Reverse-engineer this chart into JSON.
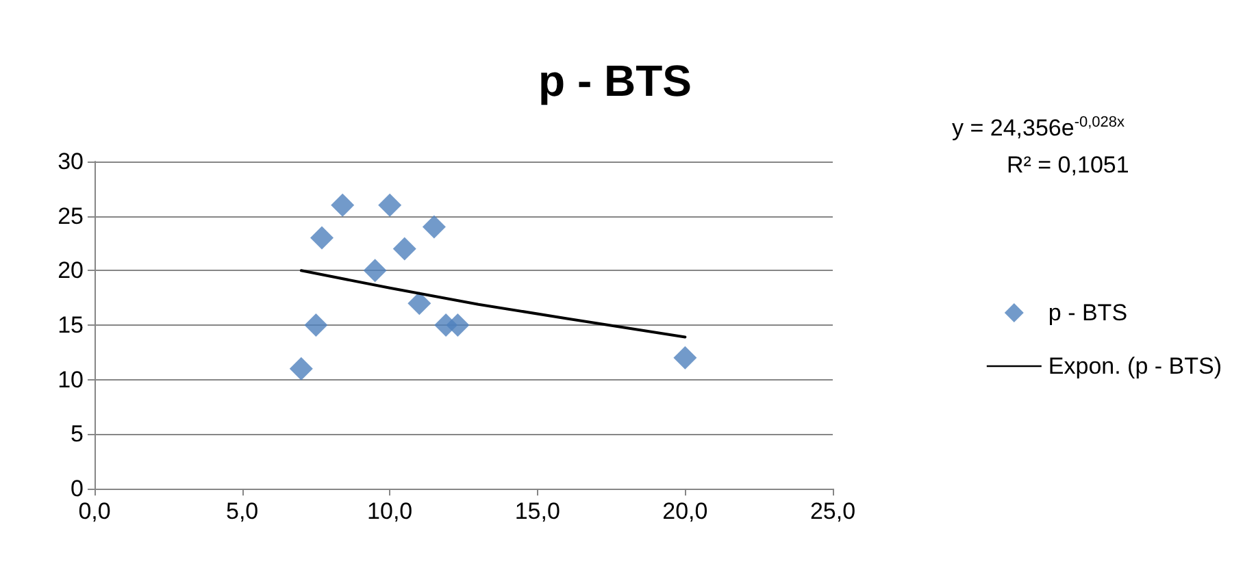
{
  "chart_data": {
    "type": "scatter",
    "title": "p - BTS",
    "x": [
      7.0,
      7.5,
      7.7,
      8.4,
      10.0,
      9.5,
      10.5,
      11.5,
      11.0,
      11.9,
      12.3,
      20.0
    ],
    "series": [
      {
        "name": "p - BTS",
        "color": "#4f81bd",
        "values": [
          11,
          15,
          23,
          26,
          26,
          20,
          22,
          24,
          17,
          15,
          15,
          12
        ]
      },
      {
        "name": "Expon. (p - BTS)",
        "type": "line",
        "color": "#000000",
        "x": [
          7,
          10,
          13,
          16,
          20
        ],
        "values": [
          20.0,
          18.4,
          16.9,
          15.6,
          13.9
        ],
        "marker": "none"
      }
    ],
    "xlim": [
      0,
      25
    ],
    "xticks": [
      {
        "value": 0,
        "label": "0,0"
      },
      {
        "value": 5,
        "label": "5,0"
      },
      {
        "value": 10,
        "label": "10,0"
      },
      {
        "value": 15,
        "label": "15,0"
      },
      {
        "value": 20,
        "label": "20,0"
      },
      {
        "value": 25,
        "label": "25,0"
      }
    ],
    "ylim": [
      0,
      30
    ],
    "yticks": [
      0,
      5,
      10,
      15,
      20,
      25,
      30
    ],
    "grid": "y",
    "legend": "right",
    "marker": "diamond",
    "annotations": [
      "y = 24,356e$^{-0,028x}$",
      "R² = 0,1051"
    ]
  }
}
